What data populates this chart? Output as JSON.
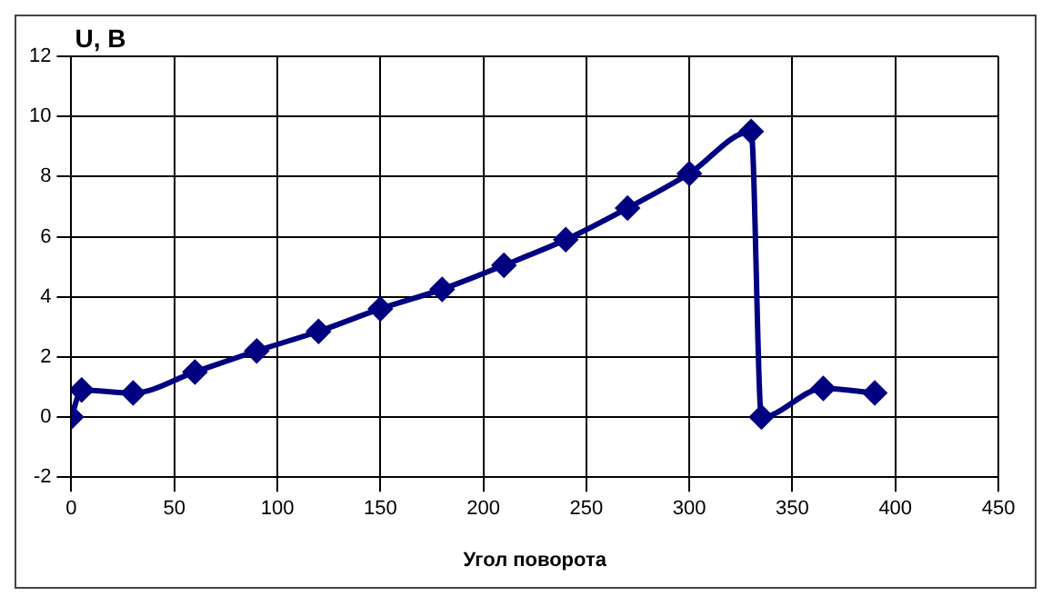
{
  "chart_data": {
    "type": "line",
    "xlabel": "Угол поворота",
    "ylabel": "U, В",
    "x": [
      0,
      5,
      30,
      60,
      90,
      120,
      150,
      180,
      210,
      240,
      270,
      300,
      330,
      335,
      365,
      390
    ],
    "series": [
      {
        "color": "#000080",
        "values": [
          0,
          0.9,
          0.8,
          1.5,
          2.2,
          2.85,
          3.6,
          4.25,
          5.05,
          5.9,
          6.95,
          8.1,
          9.5,
          0,
          0.95,
          0.8
        ]
      }
    ],
    "xlim": [
      0,
      450
    ],
    "xticks": [
      0,
      50,
      100,
      150,
      200,
      250,
      300,
      350,
      400,
      450
    ],
    "ylim": [
      -2,
      12
    ],
    "yticks": [
      -2,
      0,
      2,
      4,
      6,
      8,
      10,
      12
    ],
    "grid": true,
    "legend": false,
    "marker": "diamond",
    "line_style": "solid"
  }
}
